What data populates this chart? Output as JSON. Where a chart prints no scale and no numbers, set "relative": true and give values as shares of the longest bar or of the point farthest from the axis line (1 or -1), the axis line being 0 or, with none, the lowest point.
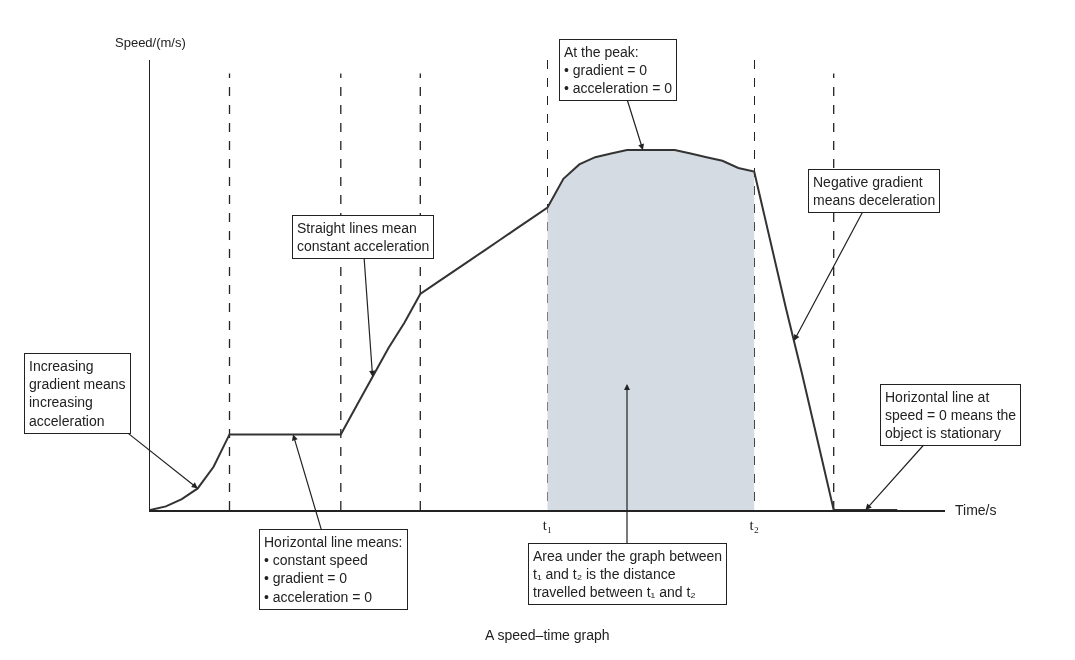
{
  "chart_data": {
    "type": "line",
    "relative": true,
    "xlabel": "Time/s",
    "categories": [
      null,
      null,
      null,
      null,
      null,
      null,
      null,
      null,
      null,
      null,
      null,
      null,
      null,
      null,
      null,
      null,
      null,
      null,
      null,
      null,
      null,
      null,
      null,
      null,
      null,
      "t₁",
      null,
      null,
      null,
      null,
      null,
      null,
      null,
      null,
      null,
      null,
      null,
      null,
      "t₂",
      null,
      null,
      null,
      null,
      null,
      null,
      null,
      null,
      null
    ],
    "grid": "x",
    "marker": "none",
    "line_style": "solid",
    "series": [
      {
        "type": "area",
        "color": "#d5dbe2",
        "values": [
          null,
          null,
          null,
          null,
          null,
          null,
          null,
          null,
          null,
          null,
          null,
          null,
          null,
          null,
          null,
          null,
          null,
          null,
          null,
          null,
          null,
          null,
          null,
          null,
          null,
          0.84,
          0.92,
          0.96,
          0.98,
          0.99,
          1,
          1,
          1,
          1,
          0.99,
          0.98,
          0.97,
          0.95,
          0.94,
          null,
          null,
          null,
          null,
          null,
          null,
          null,
          null,
          null
        ]
      },
      {
        "color": "#333333",
        "values": [
          0,
          0.01,
          0.03,
          0.06,
          0.12,
          0.21,
          0.21,
          0.21,
          0.21,
          0.21,
          0.21,
          0.21,
          0.21,
          0.29,
          0.37,
          0.45,
          0.52,
          0.6,
          0.63,
          0.66,
          0.69,
          0.72,
          0.75,
          0.78,
          0.81,
          0.84,
          0.92,
          0.96,
          0.98,
          0.99,
          1,
          1,
          1,
          1,
          0.99,
          0.98,
          0.97,
          0.95,
          0.94,
          0.75,
          0.56,
          0.38,
          0.19,
          0,
          0,
          0,
          0,
          0
        ]
      }
    ],
    "annotations": [
      "Increasing\ngradient means\nincreasing\nacceleration",
      "Horizontal line means:\n• constant speed\n• gradient = 0\n• acceleration = 0",
      "Straight lines mean\nconstant acceleration",
      "At the peak:\n• gradient = 0\n• acceleration = 0",
      "Negative gradient\nmeans deceleration",
      "Horizontal line at\nspeed = 0 means the\nobject is stationary",
      "Area under the graph between\nt₁ and t₂ is the distance\ntravelled between t₁ and t₂",
      "A speed–time graph",
      "Speed/(m/s)"
    ]
  }
}
